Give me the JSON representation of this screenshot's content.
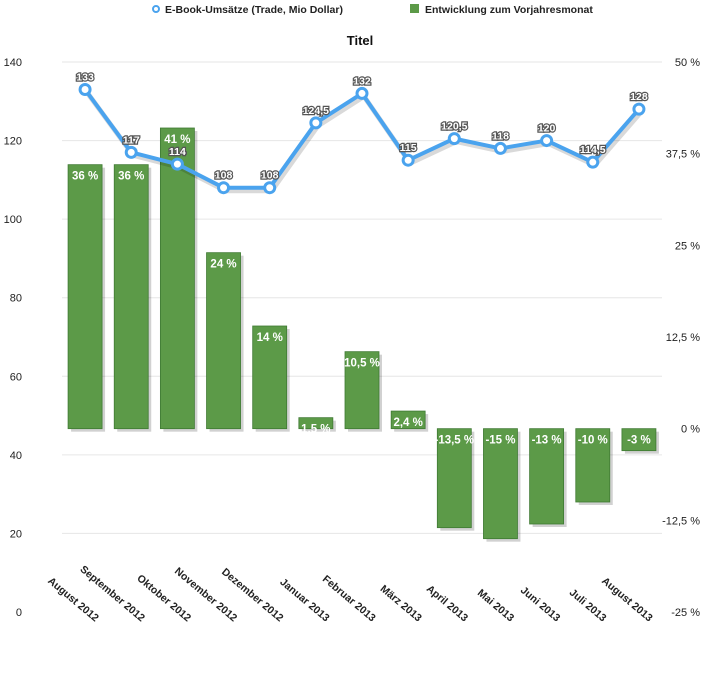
{
  "chart_data": {
    "type": "bar+line",
    "title": "Titel",
    "categories": [
      "August 2012",
      "September 2012",
      "Oktober 2012",
      "November 2012",
      "Dezember 2012",
      "Januar 2013",
      "Februar 2013",
      "März 2013",
      "April 2013",
      "Mai 2013",
      "Juni 2013",
      "Juli 2013",
      "August 2013"
    ],
    "series": [
      {
        "name": "E-Book-Umsätze (Trade, Mio Dollar)",
        "type": "line",
        "axis": "left",
        "values": [
          133,
          117,
          114,
          108,
          108,
          124.5,
          132,
          115,
          120.5,
          118,
          120,
          114.5,
          128
        ],
        "labels": [
          "133",
          "117",
          "114",
          "108",
          "108",
          "124,5",
          "132",
          "115",
          "120,5",
          "118",
          "120",
          "114,5",
          "128"
        ]
      },
      {
        "name": "Entwicklung zum Vorjahresmonat",
        "type": "bar",
        "axis": "right",
        "values": [
          36,
          36,
          41,
          24,
          14,
          1.5,
          10.5,
          2.4,
          -13.5,
          -15,
          -13,
          -10,
          -3
        ],
        "labels": [
          "36 %",
          "36 %",
          "41 %",
          "24 %",
          "14 %",
          "1,5 %",
          "10,5 %",
          "2,4 %",
          "-13,5 %",
          "-15 %",
          "-13 %",
          "-10 %",
          "-3 %"
        ]
      }
    ],
    "y_left": {
      "min": 0,
      "max": 140,
      "ticks": [
        0,
        20,
        40,
        60,
        80,
        100,
        120,
        140
      ],
      "tick_labels": [
        "0",
        "20",
        "40",
        "60",
        "80",
        "100",
        "120",
        "140"
      ]
    },
    "y_right": {
      "min": -25,
      "max": 50,
      "ticks": [
        -25,
        -12.5,
        0,
        12.5,
        25,
        37.5,
        50
      ],
      "tick_labels": [
        "-25 %",
        "-12,5 %",
        "0 %",
        "12,5 %",
        "25 %",
        "37,5 %",
        "50 %"
      ]
    },
    "legend_position": "top",
    "grid": true
  },
  "colors": {
    "bar": "#5c9a48",
    "bar_dark": "#3f7a33",
    "line": "#4aa3ee",
    "grid": "#e6e6e6"
  }
}
